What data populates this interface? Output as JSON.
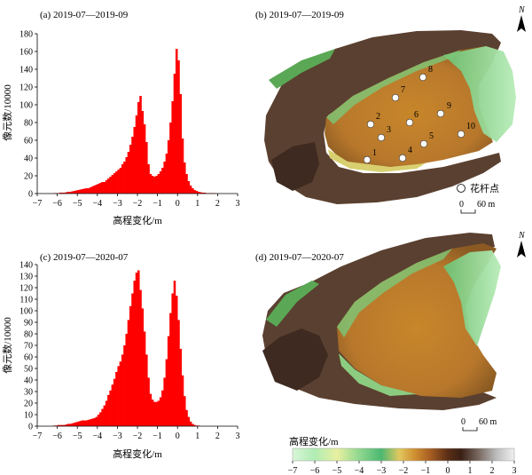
{
  "chart_data": [
    {
      "type": "bar",
      "panel_label": "(a) 2019-07—2019-09",
      "xlabel": "高程变化/m",
      "ylabel": "像元数/10000",
      "xlim": [
        -7,
        3
      ],
      "ylim": [
        0,
        180
      ],
      "x_ticks": [
        -7,
        -6,
        -5,
        -4,
        -3,
        -2,
        -1,
        0,
        1,
        2,
        3
      ],
      "y_ticks": [
        0,
        20,
        40,
        60,
        80,
        100,
        120,
        140,
        160,
        180
      ],
      "bin_width": 0.1,
      "x": [
        -7.0,
        -6.9,
        -6.8,
        -6.7,
        -6.6,
        -6.5,
        -6.4,
        -6.3,
        -6.2,
        -6.1,
        -6.0,
        -5.9,
        -5.8,
        -5.7,
        -5.6,
        -5.5,
        -5.4,
        -5.3,
        -5.2,
        -5.1,
        -5.0,
        -4.9,
        -4.8,
        -4.7,
        -4.6,
        -4.5,
        -4.4,
        -4.3,
        -4.2,
        -4.1,
        -4.0,
        -3.9,
        -3.8,
        -3.7,
        -3.6,
        -3.5,
        -3.4,
        -3.3,
        -3.2,
        -3.1,
        -3.0,
        -2.9,
        -2.8,
        -2.7,
        -2.6,
        -2.5,
        -2.4,
        -2.3,
        -2.2,
        -2.1,
        -2.0,
        -1.9,
        -1.8,
        -1.7,
        -1.6,
        -1.5,
        -1.4,
        -1.3,
        -1.2,
        -1.1,
        -1.0,
        -0.9,
        -0.8,
        -0.7,
        -0.6,
        -0.5,
        -0.4,
        -0.3,
        -0.2,
        -0.1,
        0.0,
        0.1,
        0.2,
        0.3,
        0.4,
        0.5,
        0.6,
        0.7,
        0.8,
        0.9,
        1.0,
        1.1,
        1.2,
        1.3,
        1.4,
        1.5,
        1.6,
        1.7,
        1.8,
        1.9,
        2.0,
        2.1,
        2.2,
        2.3,
        2.4,
        2.5,
        2.6,
        2.7,
        2.8,
        2.9
      ],
      "values": [
        0,
        0,
        0,
        0,
        0,
        0,
        0,
        0,
        0.5,
        0.5,
        0.5,
        1,
        1,
        1,
        1.5,
        2,
        2,
        2.5,
        3,
        3.5,
        4,
        4.5,
        5,
        5.5,
        6,
        6,
        7,
        8,
        9,
        10,
        11,
        12,
        13,
        13,
        15,
        17,
        19,
        21,
        23,
        25,
        27,
        29,
        33,
        36,
        41,
        47,
        55,
        64,
        75,
        88,
        103,
        110,
        93,
        78,
        58,
        33,
        22,
        20,
        19,
        20,
        22,
        25,
        29,
        36,
        45,
        60,
        80,
        104,
        135,
        163,
        150,
        112,
        62,
        35,
        22,
        14,
        9,
        6,
        4,
        3,
        2,
        1.5,
        1,
        1,
        0.5,
        0.5,
        0.5,
        0.5,
        0.5,
        0,
        0,
        0,
        0,
        0,
        0,
        0,
        0,
        0,
        0,
        0
      ],
      "color": "#ff0000"
    },
    {
      "type": "bar",
      "panel_label": "(c) 2019-07—2020-07",
      "xlabel": "高程变化/m",
      "ylabel": "像元数/10000",
      "xlim": [
        -7,
        3
      ],
      "ylim": [
        0,
        140
      ],
      "x_ticks": [
        -7,
        -6,
        -5,
        -4,
        -3,
        -2,
        -1,
        0,
        1,
        2,
        3
      ],
      "y_ticks": [
        0,
        10,
        20,
        30,
        40,
        50,
        60,
        70,
        80,
        90,
        100,
        110,
        120,
        130,
        140
      ],
      "bin_width": 0.1,
      "x": [
        -7.0,
        -6.9,
        -6.8,
        -6.7,
        -6.6,
        -6.5,
        -6.4,
        -6.3,
        -6.2,
        -6.1,
        -6.0,
        -5.9,
        -5.8,
        -5.7,
        -5.6,
        -5.5,
        -5.4,
        -5.3,
        -5.2,
        -5.1,
        -5.0,
        -4.9,
        -4.8,
        -4.7,
        -4.6,
        -4.5,
        -4.4,
        -4.3,
        -4.2,
        -4.1,
        -4.0,
        -3.9,
        -3.8,
        -3.7,
        -3.6,
        -3.5,
        -3.4,
        -3.3,
        -3.2,
        -3.1,
        -3.0,
        -2.9,
        -2.8,
        -2.7,
        -2.6,
        -2.5,
        -2.4,
        -2.3,
        -2.2,
        -2.1,
        -2.0,
        -1.9,
        -1.8,
        -1.7,
        -1.6,
        -1.5,
        -1.4,
        -1.3,
        -1.2,
        -1.1,
        -1.0,
        -0.9,
        -0.8,
        -0.7,
        -0.6,
        -0.5,
        -0.4,
        -0.3,
        -0.2,
        -0.1,
        0.0,
        0.1,
        0.2,
        0.3,
        0.4,
        0.5,
        0.6,
        0.7,
        0.8,
        0.9,
        1.0,
        1.1,
        1.2,
        1.3,
        1.4,
        1.5,
        1.6,
        1.7,
        1.8,
        1.9,
        2.0,
        2.1,
        2.2,
        2.3,
        2.4,
        2.5,
        2.6,
        2.7,
        2.8,
        2.9
      ],
      "values": [
        0,
        0,
        0,
        0,
        0,
        0,
        0,
        0,
        0.5,
        0.5,
        1,
        1,
        1,
        1,
        1.5,
        2,
        2,
        2.5,
        3,
        3.5,
        4,
        4.5,
        5,
        5,
        5,
        5.5,
        6,
        6.5,
        7,
        8,
        10,
        12,
        15,
        18,
        22,
        27,
        31,
        36,
        41,
        47,
        52,
        56,
        62,
        70,
        80,
        92,
        104,
        115,
        126,
        133,
        135,
        118,
        102,
        82,
        62,
        42,
        28,
        23,
        21,
        21,
        22,
        25,
        31,
        42,
        58,
        78,
        98,
        115,
        126,
        113,
        92,
        67,
        44,
        26,
        14,
        8,
        4,
        2,
        1,
        0.5,
        0.5,
        0,
        0,
        0,
        0,
        0,
        0,
        0,
        0,
        0,
        0,
        0,
        0,
        0,
        0,
        0,
        0,
        0,
        0,
        0
      ],
      "color": "#ff0000"
    }
  ],
  "maps": {
    "b": {
      "panel_label": "(b) 2019-07—2019-09",
      "north": "N",
      "legend_text": "花杆点",
      "scale": {
        "zero": "0",
        "label": "60 m"
      },
      "points": [
        "1",
        "2",
        "3",
        "4",
        "5",
        "6",
        "7",
        "8",
        "9",
        "10"
      ]
    },
    "d": {
      "panel_label": "(d) 2019-07—2020-07",
      "north": "N",
      "scale": {
        "zero": "0",
        "label": "60 m"
      }
    }
  },
  "colorbar": {
    "title": "高程变化/m",
    "ticks": [
      "−7",
      "−6",
      "−5",
      "−4",
      "−3",
      "−2",
      "−1",
      "0",
      "1",
      "2",
      "3"
    ],
    "colors": [
      "#d8f6d8",
      "#a8eab0",
      "#7cd896",
      "#52c07a",
      "#e8d86a",
      "#dca030",
      "#c67c2a",
      "#8a4a20",
      "#4a2a18",
      "#888888",
      "#d8d8d8"
    ]
  }
}
